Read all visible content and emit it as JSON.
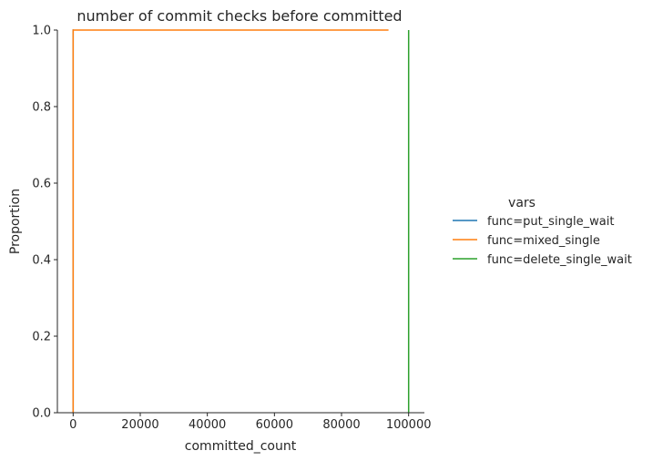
{
  "chart_data": {
    "type": "line",
    "title": "number of commit checks before committed",
    "xlabel": "committed_count",
    "ylabel": "Proportion",
    "xlim": [
      -4700,
      104700
    ],
    "ylim": [
      0,
      1
    ],
    "x_ticks": [
      0,
      20000,
      40000,
      60000,
      80000,
      100000
    ],
    "y_ticks": [
      0.0,
      0.2,
      0.4,
      0.6,
      0.8,
      1.0
    ],
    "x_tick_labels": [
      "0",
      "20000",
      "40000",
      "60000",
      "80000",
      "100000"
    ],
    "y_tick_labels": [
      "0.0",
      "0.2",
      "0.4",
      "0.6",
      "0.8",
      "1.0"
    ],
    "grid": false,
    "legend": {
      "title": "vars",
      "placement": "right"
    },
    "series": [
      {
        "name": "func=put_single_wait",
        "color": "#1f77b4",
        "points": [
          [
            0,
            0
          ],
          [
            0,
            1
          ],
          [
            200,
            1
          ]
        ]
      },
      {
        "name": "func=mixed_single",
        "color": "#ff7f0e",
        "points": [
          [
            0,
            0
          ],
          [
            0,
            1
          ],
          [
            94000,
            1
          ]
        ]
      },
      {
        "name": "func=delete_single_wait",
        "color": "#2ca02c",
        "points": [
          [
            100000,
            0
          ],
          [
            100000,
            1
          ]
        ]
      }
    ]
  }
}
